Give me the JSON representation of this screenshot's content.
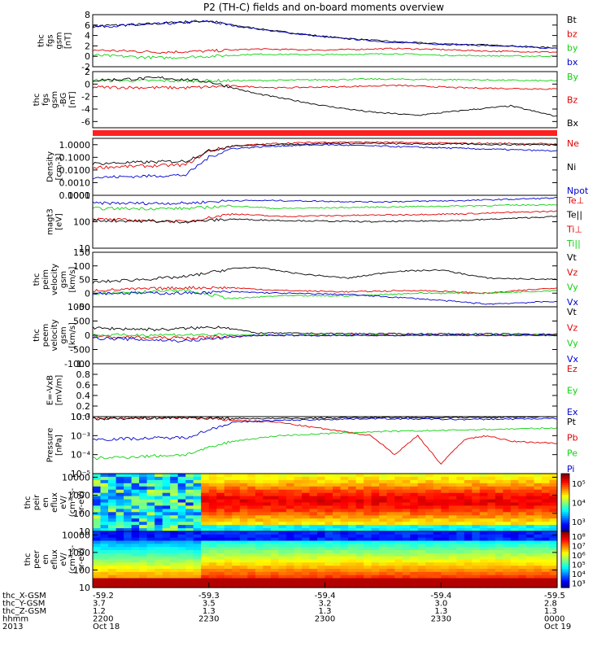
{
  "title": "P2 (TH-C) fields and on-board moments overview",
  "colors": {
    "black": "#000000",
    "red": "#e00000",
    "green": "#10d010",
    "blue": "#0000d0",
    "bar": "#ff2020"
  },
  "chart_data": [
    {
      "type": "line",
      "ylabel": [
        "thc",
        "fgs",
        "gsm",
        "[nT]"
      ],
      "ylim": [
        -2,
        8
      ],
      "ticks": [
        "8",
        "6",
        "4",
        "2",
        "0",
        "-2"
      ],
      "tickvals": [
        8,
        6,
        4,
        2,
        0,
        -2
      ],
      "legend": [
        {
          "label": "Bt",
          "color": "#000000"
        },
        {
          "label": "bz",
          "color": "#e00000"
        },
        {
          "label": "by",
          "color": "#10d010"
        },
        {
          "label": "bx",
          "color": "#0000d0"
        }
      ],
      "series": [
        {
          "name": "Bt",
          "color": "#000000",
          "x": [
            0,
            0.1,
            0.2,
            0.25,
            0.3,
            0.4,
            0.5,
            0.6,
            0.65,
            0.7,
            0.75,
            0.8,
            0.9,
            1.0
          ],
          "y": [
            5.8,
            6.1,
            6.6,
            6.8,
            6.0,
            4.8,
            3.8,
            3.1,
            2.8,
            2.6,
            2.4,
            2.3,
            2.0,
            1.6
          ]
        },
        {
          "name": "bx",
          "color": "#0000d0",
          "x": [
            0,
            0.1,
            0.2,
            0.25,
            0.3,
            0.4,
            0.5,
            0.6,
            0.65,
            0.7,
            0.75,
            0.8,
            0.9,
            1.0
          ],
          "y": [
            5.7,
            6.0,
            6.5,
            6.7,
            5.9,
            4.7,
            3.7,
            3.0,
            2.6,
            2.5,
            2.3,
            2.2,
            1.9,
            1.5
          ]
        },
        {
          "name": "bz",
          "color": "#e00000",
          "x": [
            0,
            0.15,
            0.25,
            0.35,
            0.5,
            0.65,
            0.75,
            0.85,
            1.0
          ],
          "y": [
            1.2,
            0.8,
            1.0,
            1.4,
            1.2,
            1.5,
            1.3,
            1.0,
            0.8
          ]
        },
        {
          "name": "by",
          "color": "#10d010",
          "x": [
            0,
            0.15,
            0.25,
            0.35,
            0.5,
            0.65,
            0.75,
            0.85,
            1.0
          ],
          "y": [
            0.2,
            -0.3,
            0.0,
            0.4,
            0.3,
            0.5,
            0.2,
            0.1,
            0.0
          ]
        }
      ]
    },
    {
      "type": "line",
      "ylabel": [
        "thc",
        "fgs",
        "gsm",
        "-BG",
        "[nT]"
      ],
      "ylim": [
        -7,
        2
      ],
      "ticks": [
        "2",
        "0",
        "-2",
        "-4",
        "-6"
      ],
      "tickvals": [
        2,
        0,
        -2,
        -4,
        -6
      ],
      "legend": [
        {
          "label": "By",
          "color": "#10d010"
        },
        {
          "label": "Bz",
          "color": "#e00000"
        },
        {
          "label": "Bx",
          "color": "#000000"
        }
      ],
      "series": [
        {
          "name": "By",
          "color": "#10d010",
          "x": [
            0,
            0.2,
            0.4,
            0.6,
            0.8,
            1.0
          ],
          "y": [
            0.6,
            0.5,
            0.6,
            0.8,
            0.7,
            0.5
          ]
        },
        {
          "name": "Bz",
          "color": "#e00000",
          "x": [
            0,
            0.2,
            0.3,
            0.4,
            0.55,
            0.65,
            0.8,
            1.0
          ],
          "y": [
            -0.5,
            -0.6,
            -0.3,
            -0.6,
            -0.4,
            -0.2,
            -0.6,
            -0.8
          ]
        },
        {
          "name": "Bx",
          "color": "#000000",
          "x": [
            0,
            0.15,
            0.25,
            0.35,
            0.5,
            0.6,
            0.7,
            0.8,
            0.9,
            1.0
          ],
          "y": [
            0.6,
            1.0,
            0.4,
            -1.5,
            -3.5,
            -4.5,
            -5.0,
            -4.2,
            -3.5,
            -5.2
          ]
        }
      ]
    },
    {
      "type": "line",
      "ylabel": [
        "Density",
        "[cm-3]"
      ],
      "ylim": [
        -4,
        0.5
      ],
      "log": true,
      "ticks": [
        "1.0000",
        "0.1000",
        "0.0100",
        "0.0010",
        "0.0001"
      ],
      "tickvals": [
        0,
        -1,
        -2,
        -3,
        -4
      ],
      "legend": [
        {
          "label": "Ne",
          "color": "#e00000"
        },
        {
          "label": "Ni",
          "color": "#000000"
        },
        {
          "label": "Npot",
          "color": "#0000d0"
        }
      ],
      "series": [
        {
          "name": "Ne",
          "color": "#e00000",
          "x": [
            0,
            0.1,
            0.2,
            0.25,
            0.3,
            0.4,
            0.5,
            0.6,
            0.7,
            0.8,
            0.9,
            1.0
          ],
          "y": [
            -1.8,
            -1.7,
            -1.6,
            -0.5,
            -0.1,
            0.1,
            0.2,
            0.2,
            0.15,
            0.1,
            0.1,
            0.05
          ]
        },
        {
          "name": "Ni",
          "color": "#000000",
          "x": [
            0,
            0.1,
            0.2,
            0.25,
            0.3,
            0.4,
            0.5,
            0.6,
            0.7,
            0.8,
            0.9,
            1.0
          ],
          "y": [
            -1.5,
            -1.4,
            -1.3,
            -0.5,
            -0.1,
            0.0,
            0.1,
            0.1,
            0.05,
            0.05,
            0.0,
            0.0
          ]
        },
        {
          "name": "Npot",
          "color": "#0000d0",
          "x": [
            0,
            0.1,
            0.2,
            0.25,
            0.3,
            0.4,
            0.5,
            0.6,
            0.7,
            0.8,
            0.9,
            1.0
          ],
          "y": [
            -2.6,
            -2.5,
            -2.4,
            -1.0,
            -0.3,
            -0.1,
            0.0,
            -0.1,
            -0.2,
            -0.3,
            -0.4,
            -0.5
          ]
        }
      ]
    },
    {
      "type": "line",
      "ylabel": [
        "magt3",
        "[eV]"
      ],
      "ylim": [
        1,
        3
      ],
      "log": true,
      "ticks": [
        "1000",
        "100",
        "10"
      ],
      "tickvals": [
        3,
        2,
        1
      ],
      "legend": [
        {
          "label": "Te⊥",
          "color": "#e00000"
        },
        {
          "label": "Te||",
          "color": "#000000"
        },
        {
          "label": "Ti⊥",
          "color": "#e00000"
        },
        {
          "label": "Ti||",
          "color": "#10d010"
        }
      ],
      "series": [
        {
          "name": "Ti",
          "color": "#0000d0",
          "x": [
            0,
            0.2,
            0.3,
            0.4,
            0.6,
            0.8,
            1.0
          ],
          "y": [
            2.7,
            2.7,
            2.8,
            2.8,
            2.75,
            2.8,
            2.9
          ]
        },
        {
          "name": "Ti2",
          "color": "#10d010",
          "x": [
            0,
            0.2,
            0.3,
            0.4,
            0.6,
            0.8,
            1.0
          ],
          "y": [
            2.5,
            2.5,
            2.6,
            2.5,
            2.55,
            2.6,
            2.65
          ]
        },
        {
          "name": "Te1",
          "color": "#e00000",
          "x": [
            0,
            0.2,
            0.3,
            0.4,
            0.6,
            0.8,
            1.0
          ],
          "y": [
            2.1,
            2.0,
            2.3,
            2.2,
            2.25,
            2.3,
            2.4
          ]
        },
        {
          "name": "Te2",
          "color": "#000000",
          "x": [
            0,
            0.2,
            0.3,
            0.4,
            0.6,
            0.8,
            1.0
          ],
          "y": [
            2.05,
            2.0,
            2.1,
            2.05,
            2.0,
            2.05,
            2.2
          ]
        }
      ]
    },
    {
      "type": "line",
      "ylabel": [
        "thc",
        "peim",
        "velocity",
        "gsm",
        "[km/s]"
      ],
      "ylim": [
        -50,
        150
      ],
      "ticks": [
        "150",
        "100",
        "50",
        "0",
        "-50"
      ],
      "tickvals": [
        150,
        100,
        50,
        0,
        -50
      ],
      "legend": [
        {
          "label": "Vt",
          "color": "#000000"
        },
        {
          "label": "Vz",
          "color": "#e00000"
        },
        {
          "label": "Vy",
          "color": "#10d010"
        },
        {
          "label": "Vx",
          "color": "#0000d0"
        }
      ],
      "series": [
        {
          "name": "Vt",
          "color": "#000000",
          "x": [
            0,
            0.2,
            0.3,
            0.35,
            0.45,
            0.55,
            0.65,
            0.75,
            0.85,
            1.0
          ],
          "y": [
            40,
            60,
            90,
            95,
            70,
            55,
            80,
            85,
            55,
            50
          ]
        },
        {
          "name": "Vz",
          "color": "#e00000",
          "x": [
            0,
            0.2,
            0.3,
            0.4,
            0.55,
            0.7,
            0.85,
            1.0
          ],
          "y": [
            10,
            20,
            20,
            10,
            5,
            10,
            0,
            20
          ]
        },
        {
          "name": "Vy",
          "color": "#10d010",
          "x": [
            0,
            0.2,
            0.3,
            0.4,
            0.55,
            0.7,
            0.85,
            1.0
          ],
          "y": [
            0,
            10,
            -20,
            -10,
            -10,
            0,
            0,
            10
          ]
        },
        {
          "name": "Vx",
          "color": "#0000d0",
          "x": [
            0,
            0.2,
            0.3,
            0.4,
            0.55,
            0.7,
            0.85,
            1.0
          ],
          "y": [
            0,
            0,
            5,
            0,
            -5,
            -20,
            -40,
            -30
          ]
        }
      ]
    },
    {
      "type": "line",
      "ylabel": [
        "thc",
        "peem",
        "velocity",
        "gsm",
        "[km/s]"
      ],
      "ylim": [
        -1000,
        1000
      ],
      "ticks": [
        "1000",
        "500",
        "0",
        "-500",
        "-1000"
      ],
      "tickvals": [
        1000,
        500,
        0,
        -500,
        -1000
      ],
      "legend": [
        {
          "label": "Vt",
          "color": "#000000"
        },
        {
          "label": "Vz",
          "color": "#e00000"
        },
        {
          "label": "Vy",
          "color": "#10d010"
        },
        {
          "label": "Vx",
          "color": "#0000d0"
        }
      ],
      "series": [
        {
          "name": "Vt",
          "color": "#000000",
          "x": [
            0,
            0.15,
            0.28,
            0.35,
            0.5,
            0.7,
            1.0
          ],
          "y": [
            250,
            200,
            300,
            80,
            60,
            50,
            40
          ]
        },
        {
          "name": "Vz",
          "color": "#e00000",
          "x": [
            0,
            0.2,
            0.35,
            0.5,
            0.7,
            1.0
          ],
          "y": [
            -50,
            -100,
            0,
            0,
            0,
            0
          ]
        },
        {
          "name": "Vy",
          "color": "#10d010",
          "x": [
            0,
            0.2,
            0.35,
            0.5,
            0.7,
            1.0
          ],
          "y": [
            0,
            20,
            0,
            0,
            0,
            0
          ]
        },
        {
          "name": "Vx",
          "color": "#0000d0",
          "x": [
            0,
            0.2,
            0.35,
            0.5,
            0.7,
            1.0
          ],
          "y": [
            -100,
            -200,
            0,
            -10,
            0,
            0
          ]
        }
      ]
    },
    {
      "type": "line",
      "ylabel": [
        "E=-VxB",
        "[mV/m]"
      ],
      "ylim": [
        0,
        1
      ],
      "ticks": [
        "1.0",
        "0.8",
        "0.6",
        "0.4",
        "0.2",
        "0.0"
      ],
      "tickvals": [
        1,
        0.8,
        0.6,
        0.4,
        0.2,
        0
      ],
      "legend": [
        {
          "label": "Ez",
          "color": "#e00000"
        },
        {
          "label": "Ey",
          "color": "#10d010"
        },
        {
          "label": "Ex",
          "color": "#0000d0"
        }
      ],
      "series": []
    },
    {
      "type": "line",
      "ylabel": [
        "Pressure",
        "[nPa]"
      ],
      "ylim": [
        -5,
        -2
      ],
      "log": true,
      "ticks": [
        "10⁻²",
        "10⁻³",
        "10⁻⁴",
        "10⁻⁵"
      ],
      "tickvals": [
        -2,
        -3,
        -4,
        -5
      ],
      "legend": [
        {
          "label": "Pt",
          "color": "#000000"
        },
        {
          "label": "Pb",
          "color": "#e00000"
        },
        {
          "label": "Pe",
          "color": "#10d010"
        },
        {
          "label": "Pi",
          "color": "#0000d0"
        }
      ],
      "series": [
        {
          "name": "Pb",
          "color": "#e00000",
          "x": [
            0,
            0.2,
            0.4,
            0.6,
            0.65,
            0.7,
            0.75,
            0.8,
            0.85,
            0.9,
            1.0
          ],
          "y": [
            -2.1,
            -2.05,
            -2.3,
            -3.0,
            -4.0,
            -3.0,
            -4.5,
            -3.2,
            -3.0,
            -3.3,
            -3.4
          ]
        },
        {
          "name": "Pi",
          "color": "#0000d0",
          "x": [
            0,
            0.2,
            0.3,
            0.4,
            0.6,
            0.8,
            1.0
          ],
          "y": [
            -3.2,
            -3.1,
            -2.3,
            -2.2,
            -2.1,
            -2.15,
            -2.1
          ]
        },
        {
          "name": "Pe",
          "color": "#10d010",
          "x": [
            0,
            0.2,
            0.3,
            0.4,
            0.6,
            0.8,
            1.0
          ],
          "y": [
            -4.2,
            -4.0,
            -3.3,
            -3.0,
            -2.8,
            -2.7,
            -2.6
          ]
        },
        {
          "name": "Pt",
          "color": "#000000",
          "x": [
            0,
            0.2,
            0.3,
            0.4,
            0.6,
            0.8,
            1.0
          ],
          "y": [
            -2.1,
            -2.05,
            -2.1,
            -2.1,
            -2.05,
            -2.05,
            -2.0
          ]
        }
      ]
    },
    {
      "type": "heatmap",
      "ylabel": [
        "thc",
        "peir",
        "en",
        "eflux",
        "eV/",
        "(cm²-s-",
        "sr-eV)"
      ],
      "ylim": [
        1,
        4.2
      ],
      "log": true,
      "ticks": [
        "10000",
        "1000",
        "100",
        "10"
      ],
      "tickvals": [
        4,
        3,
        2,
        1
      ],
      "colorbar": {
        "ticks": [
          "10⁵",
          "10⁴",
          "10³"
        ],
        "tickvals": [
          5,
          4,
          3
        ],
        "range": [
          2.5,
          5.5
        ]
      }
    },
    {
      "type": "heatmap",
      "ylabel": [
        "thc",
        "peer",
        "en",
        "eflux",
        "eV/",
        "(cm²-s-",
        "sr-eV)"
      ],
      "ylim": [
        1,
        4.2
      ],
      "log": true,
      "ticks": [
        "10000",
        "1000",
        "100",
        "10"
      ],
      "tickvals": [
        4,
        3,
        2,
        1
      ],
      "colorbar": {
        "ticks": [
          "10⁸",
          "10⁷",
          "10⁶",
          "10⁵",
          "10⁴",
          "10³"
        ],
        "tickvals": [
          8,
          7,
          6,
          5,
          4,
          3
        ],
        "range": [
          2.5,
          8.5
        ]
      }
    }
  ],
  "xaxis": {
    "tick_positions": [
      0,
      0.25,
      0.5,
      0.75,
      1.0
    ],
    "rows": [
      {
        "label": "thc_X-GSM",
        "values": [
          "-59.2",
          "-59.3",
          "-59.4",
          "-59.4",
          "-59.5"
        ]
      },
      {
        "label": "thc_Y-GSM",
        "values": [
          "3.7",
          "3.5",
          "3.2",
          "3.0",
          "2.8"
        ]
      },
      {
        "label": "thc_Z-GSM",
        "values": [
          "1.2",
          "1.3",
          "1.3",
          "1.3",
          "1.3"
        ]
      },
      {
        "label": "hhmm",
        "values": [
          "2200",
          "2230",
          "2300",
          "2330",
          "0000"
        ]
      },
      {
        "label": "2013",
        "values": [
          "Oct 18",
          "",
          "",
          "",
          "Oct 19"
        ]
      }
    ]
  }
}
